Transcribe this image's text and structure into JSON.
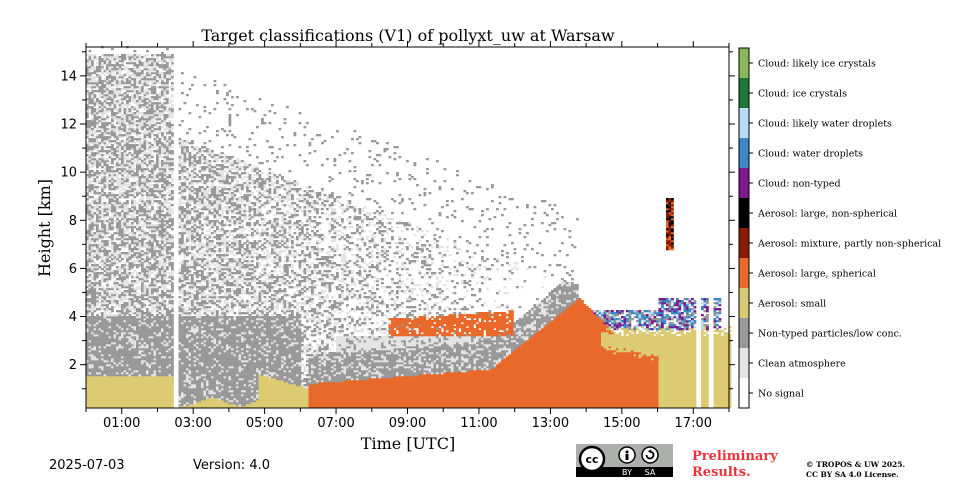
{
  "chart_data": {
    "type": "heatmap",
    "title": "Target classifications (V1) of pollyxt_uw at Warsaw",
    "xlabel": "Time [UTC]",
    "ylabel": "Height [km]",
    "xlim": [
      0,
      18
    ],
    "ylim": [
      0.2,
      15.2
    ],
    "x_ticks": [
      1,
      3,
      5,
      7,
      9,
      11,
      13,
      15,
      17
    ],
    "x_tick_labels": [
      "01:00",
      "03:00",
      "05:00",
      "07:00",
      "09:00",
      "11:00",
      "13:00",
      "15:00",
      "17:00"
    ],
    "y_ticks": [
      2,
      4,
      6,
      8,
      10,
      12,
      14
    ],
    "y_tick_labels": [
      "2",
      "4",
      "6",
      "8",
      "10",
      "12",
      "14"
    ],
    "colorbar": [
      {
        "label": "Cloud: likely ice crystals",
        "color": "#8ab85a"
      },
      {
        "label": "Cloud: ice crystals",
        "color": "#1a7a3a"
      },
      {
        "label": "Cloud: likely water droplets",
        "color": "#b9dcf5"
      },
      {
        "label": "Cloud: water droplets",
        "color": "#3a88c8"
      },
      {
        "label": "Cloud: non-typed",
        "color": "#7d1a8c"
      },
      {
        "label": "Aerosol: large, non-spherical",
        "color": "#000000"
      },
      {
        "label": "Aerosol: mixture, partly non-spherical",
        "color": "#8a1a00"
      },
      {
        "label": "Aerosol: large, spherical",
        "color": "#e8692a"
      },
      {
        "label": "Aerosol: small",
        "color": "#dccb72"
      },
      {
        "label": "Non-typed particles/low conc.",
        "color": "#999999"
      },
      {
        "label": "Clean atmosphere",
        "color": "#e4e4e4"
      },
      {
        "label": "No signal",
        "color": "#ffffff"
      }
    ]
  },
  "footer": {
    "date": "2025-07-03",
    "version": "Version: 4.0",
    "preliminary_line1": "Preliminary",
    "preliminary_line2": "Results.",
    "copyright_line1": "© TROPOS & UW 2025.",
    "copyright_line2": "CC BY SA 4.0 License.",
    "cc_text": "cc",
    "by_text": "BY",
    "sa_text": "SA"
  }
}
